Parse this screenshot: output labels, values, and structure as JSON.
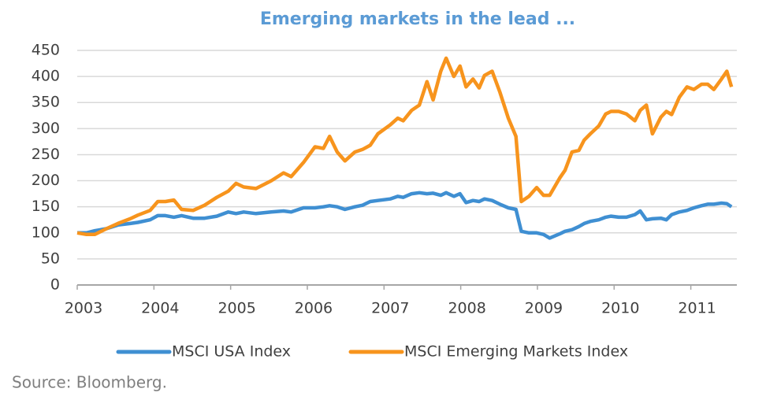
{
  "chart_data": {
    "type": "line",
    "title": "Emerging markets in the lead ...",
    "source": "Source: Bloomberg.",
    "x": [
      2003.0,
      2003.12,
      2003.23,
      2003.38,
      2003.53,
      2003.69,
      2003.79,
      2003.95,
      2004.05,
      2004.15,
      2004.26,
      2004.36,
      2004.51,
      2004.66,
      2004.82,
      2004.97,
      2005.07,
      2005.17,
      2005.33,
      2005.53,
      2005.69,
      2005.79,
      2005.95,
      2006.1,
      2006.21,
      2006.29,
      2006.39,
      2006.49,
      2006.62,
      2006.72,
      2006.82,
      2006.92,
      2007.08,
      2007.18,
      2007.25,
      2007.36,
      2007.46,
      2007.56,
      2007.64,
      2007.74,
      2007.81,
      2007.91,
      2007.99,
      2008.07,
      2008.16,
      2008.24,
      2008.31,
      2008.41,
      2008.51,
      2008.62,
      2008.72,
      2008.79,
      2008.89,
      2008.99,
      2009.08,
      2009.16,
      2009.29,
      2009.36,
      2009.45,
      2009.54,
      2009.61,
      2009.69,
      2009.8,
      2009.89,
      2009.96,
      2010.06,
      2010.16,
      2010.27,
      2010.34,
      2010.42,
      2010.5,
      2010.61,
      2010.68,
      2010.75,
      2010.85,
      2010.95,
      2011.04,
      2011.14,
      2011.22,
      2011.3,
      2011.4,
      2011.47,
      2011.53
    ],
    "series": [
      {
        "name": "MSCI USA Index",
        "color": "#3f8fd2",
        "values": [
          100,
          100,
          104,
          108,
          115,
          118,
          120,
          125,
          133,
          133,
          130,
          133,
          128,
          128,
          132,
          140,
          137,
          140,
          137,
          140,
          142,
          140,
          148,
          148,
          150,
          152,
          150,
          145,
          150,
          153,
          160,
          162,
          165,
          170,
          168,
          175,
          177,
          175,
          176,
          172,
          177,
          170,
          175,
          158,
          162,
          160,
          165,
          162,
          155,
          148,
          145,
          103,
          100,
          100,
          97,
          90,
          98,
          103,
          106,
          112,
          118,
          122,
          125,
          130,
          132,
          130,
          130,
          135,
          142,
          125,
          127,
          128,
          125,
          135,
          140,
          143,
          148,
          152,
          155,
          155,
          157,
          156,
          150
        ]
      },
      {
        "name": "MSCI Emerging Markets Index",
        "color": "#f7941d",
        "values": [
          100,
          97,
          97,
          108,
          118,
          127,
          134,
          143,
          160,
          160,
          163,
          145,
          143,
          153,
          168,
          180,
          195,
          188,
          185,
          200,
          215,
          208,
          235,
          265,
          262,
          285,
          255,
          238,
          255,
          260,
          268,
          290,
          307,
          320,
          315,
          335,
          345,
          390,
          355,
          410,
          435,
          400,
          420,
          380,
          395,
          378,
          402,
          410,
          370,
          320,
          285,
          160,
          170,
          187,
          172,
          172,
          205,
          220,
          255,
          258,
          278,
          290,
          305,
          328,
          333,
          333,
          328,
          315,
          335,
          345,
          290,
          322,
          333,
          327,
          360,
          380,
          375,
          385,
          385,
          375,
          395,
          410,
          380
        ]
      }
    ],
    "xlim": [
      2003,
      2011.6
    ],
    "xticks": [
      2003,
      2004,
      2005,
      2006,
      2007,
      2008,
      2009,
      2010,
      2011
    ],
    "ylim": [
      0,
      450
    ],
    "yticks": [
      0,
      50,
      100,
      150,
      200,
      250,
      300,
      350,
      400,
      450
    ],
    "grid": true,
    "legend": "bottom"
  }
}
